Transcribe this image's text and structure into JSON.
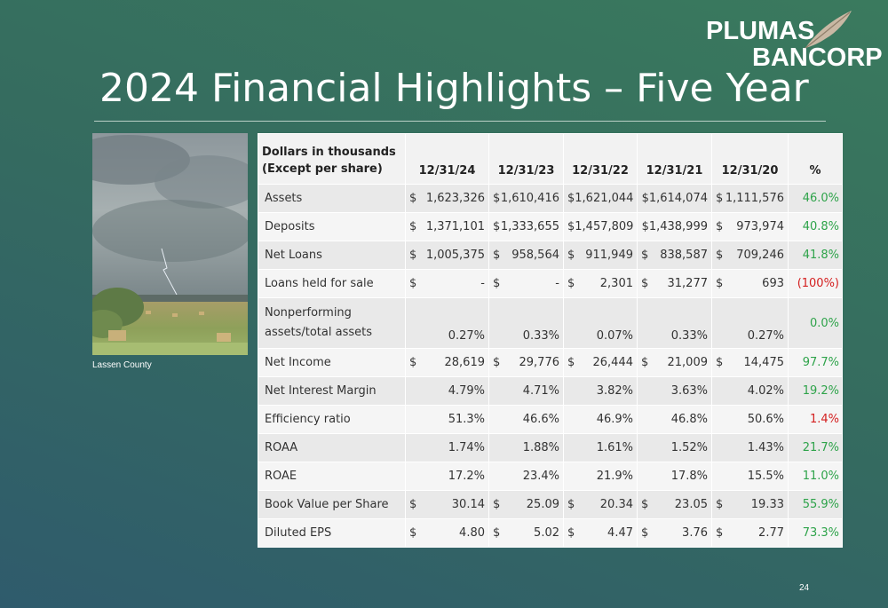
{
  "logo": {
    "line1": "PLUMAS",
    "line2": "BANCORP",
    "accent_color": "#c9b8a4"
  },
  "title": "2024 Financial Highlights – Five Year",
  "photo": {
    "caption": "Lassen County"
  },
  "table": {
    "header_line1": "Dollars in thousands",
    "header_line2": "(Except per share)",
    "years": [
      "12/31/24",
      "12/31/23",
      "12/31/22",
      "12/31/21",
      "12/31/20"
    ],
    "pct_header": "%",
    "rows": [
      {
        "label": "Assets",
        "cur": [
          "$",
          "$",
          "",
          "",
          "$"
        ],
        "vals": [
          "1,623,326",
          "1,610,416",
          "$1,621,044",
          "$1,614,074",
          "1,111,576"
        ],
        "pct": "46.0%",
        "trend": "pos"
      },
      {
        "label": "Deposits",
        "cur": [
          "$",
          "$",
          "",
          "",
          "$"
        ],
        "vals": [
          "1,371,101",
          "1,333,655",
          "$1,457,809",
          "$1,438,999",
          "973,974"
        ],
        "pct": "40.8%",
        "trend": "pos"
      },
      {
        "label": "Net Loans",
        "cur": [
          "$",
          "$",
          "$",
          "$",
          "$"
        ],
        "vals": [
          "1,005,375",
          "958,564",
          "911,949",
          "838,587",
          "709,246"
        ],
        "pct": "41.8%",
        "trend": "pos"
      },
      {
        "label": "Loans held for sale",
        "cur": [
          "$",
          "$",
          "$",
          "$",
          "$"
        ],
        "vals": [
          "-",
          "-",
          "2,301",
          "31,277",
          "693"
        ],
        "pct": "(100%)",
        "trend": "neg"
      },
      {
        "label": "Nonperforming assets/total assets",
        "label_line1": "Nonperforming",
        "label_line2": "assets/total assets",
        "cur": [
          "",
          "",
          "",
          "",
          ""
        ],
        "vals": [
          "0.27%",
          "0.33%",
          "0.07%",
          "0.33%",
          "0.27%"
        ],
        "pct": "0.0%",
        "trend": "pos"
      },
      {
        "label": "Net Income",
        "cur": [
          "$",
          "$",
          "$",
          "$",
          "$"
        ],
        "vals": [
          "28,619",
          "29,776",
          "26,444",
          "21,009",
          "14,475"
        ],
        "pct": "97.7%",
        "trend": "pos"
      },
      {
        "label": "Net Interest Margin",
        "cur": [
          "",
          "",
          "",
          "",
          ""
        ],
        "vals": [
          "4.79%",
          "4.71%",
          "3.82%",
          "3.63%",
          "4.02%"
        ],
        "pct": "19.2%",
        "trend": "pos"
      },
      {
        "label": "Efficiency ratio",
        "cur": [
          "",
          "",
          "",
          "",
          ""
        ],
        "vals": [
          "51.3%",
          "46.6%",
          "46.9%",
          "46.8%",
          "50.6%"
        ],
        "pct": "1.4%",
        "trend": "neg"
      },
      {
        "label": "ROAA",
        "cur": [
          "",
          "",
          "",
          "",
          ""
        ],
        "vals": [
          "1.74%",
          "1.88%",
          "1.61%",
          "1.52%",
          "1.43%"
        ],
        "pct": "21.7%",
        "trend": "pos"
      },
      {
        "label": "ROAE",
        "cur": [
          "",
          "",
          "",
          "",
          ""
        ],
        "vals": [
          "17.2%",
          "23.4%",
          "21.9%",
          "17.8%",
          "15.5%"
        ],
        "pct": "11.0%",
        "trend": "pos"
      },
      {
        "label": "Book Value per Share",
        "cur": [
          "$",
          "$",
          "$",
          "$",
          "$"
        ],
        "vals": [
          "30.14",
          "25.09",
          "20.34",
          "23.05",
          "19.33"
        ],
        "pct": "55.9%",
        "trend": "pos"
      },
      {
        "label": "Diluted EPS",
        "cur": [
          "$",
          "$",
          "$",
          "$",
          "$"
        ],
        "vals": [
          "4.80",
          "5.02",
          "4.47",
          "3.76",
          "2.77"
        ],
        "pct": "73.3%",
        "trend": "pos"
      }
    ]
  },
  "colors": {
    "positive": "#2ea34a",
    "negative": "#d42020"
  },
  "page_number": "24"
}
